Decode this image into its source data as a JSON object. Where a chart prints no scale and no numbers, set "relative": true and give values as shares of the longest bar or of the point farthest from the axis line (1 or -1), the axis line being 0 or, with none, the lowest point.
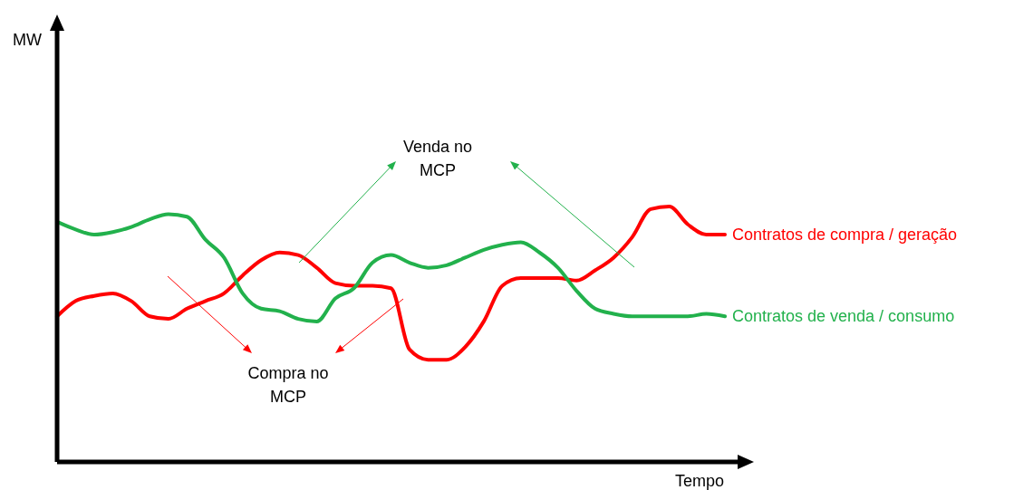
{
  "chart_data": {
    "type": "line",
    "relative": true,
    "xlabel": "Tempo",
    "categories": [
      null,
      null,
      null,
      null,
      null,
      null,
      null,
      null,
      null,
      null,
      null,
      null,
      null,
      null,
      null,
      null,
      null,
      null,
      null,
      null,
      null,
      null,
      null,
      null,
      null,
      null,
      null,
      null,
      null,
      null,
      null,
      null,
      null,
      null,
      null,
      null,
      null
    ],
    "series": [
      {
        "name": "Contratos de compra / geração",
        "color": "#ff0000",
        "values": [
          0.57,
          0.63,
          0.65,
          0.66,
          0.63,
          0.57,
          0.56,
          0.6,
          0.63,
          0.66,
          0.73,
          0.79,
          0.82,
          0.81,
          0.76,
          0.7,
          0.69,
          0.69,
          0.68,
          0.44,
          0.4,
          0.4,
          0.45,
          0.55,
          0.69,
          0.72,
          0.72,
          0.72,
          0.71,
          0.75,
          0.8,
          0.88,
          0.99,
          1,
          0.93,
          0.89,
          0.89
        ]
      },
      {
        "name": "Contratos de venda / consumo",
        "color": "#22b14c",
        "values": [
          0.94,
          0.91,
          0.89,
          0.9,
          0.92,
          0.95,
          0.97,
          0.96,
          0.87,
          0.8,
          0.66,
          0.6,
          0.59,
          0.56,
          0.55,
          0.64,
          0.68,
          0.78,
          0.81,
          0.78,
          0.76,
          0.77,
          0.8,
          0.83,
          0.85,
          0.86,
          0.82,
          0.76,
          0.67,
          0.6,
          0.58,
          0.57,
          0.57,
          0.57,
          0.57,
          0.58,
          0.57
        ]
      }
    ],
    "annotations": [
      "Venda no MCP",
      "Compra no MCP",
      "MW"
    ]
  }
}
